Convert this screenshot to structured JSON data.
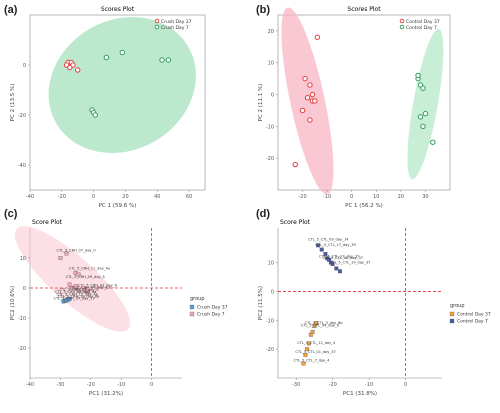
{
  "figure": {
    "panel_labels": [
      "(a)",
      "(b)",
      "(c)",
      "(d)"
    ]
  },
  "chart_data": [
    {
      "type": "scatter",
      "title": "Scores Plot",
      "xlabel": "PC 1 (59.6 %)",
      "ylabel": "PC 2 (13.5 %)",
      "xlim": [
        -40,
        70
      ],
      "ylim": [
        -50,
        20
      ],
      "xticks": [
        -40,
        -20,
        0,
        20,
        40,
        60
      ],
      "yticks": [
        -40,
        -20,
        0
      ],
      "legend": "top-right",
      "series": [
        {
          "name": "Crush Day 37",
          "color": "#e23b3b",
          "x": [
            -15,
            -16,
            -14,
            -13,
            -15,
            -17,
            -10
          ],
          "y": [
            0,
            1,
            1,
            0,
            -1,
            0,
            -2
          ]
        },
        {
          "name": "Crush Day 7",
          "color": "#2e9a5a",
          "x": [
            -1,
            0,
            1,
            8,
            18,
            43,
            47
          ],
          "y": [
            -18,
            -19,
            -20,
            3,
            5,
            2,
            2
          ]
        }
      ],
      "ellipses": [
        {
          "series": "Crush Day 7",
          "fill": "#a6e0bd",
          "cx": 18,
          "cy": -8,
          "rx": 48,
          "ry": 26,
          "angle": 30
        }
      ]
    },
    {
      "type": "scatter",
      "title": "Scores Plot",
      "xlabel": "PC 1 (56.2 %)",
      "ylabel": "PC 2 (11.1 %)",
      "xlim": [
        -30,
        40
      ],
      "ylim": [
        -30,
        25
      ],
      "xticks": [
        -20,
        -10,
        0,
        10,
        20,
        30
      ],
      "yticks": [
        -20,
        -10,
        0,
        10,
        20
      ],
      "legend": "top-right",
      "series": [
        {
          "name": "Control Day 37",
          "color": "#e23b3b",
          "x": [
            -16,
            -18,
            -17,
            -20,
            -17,
            -16,
            -15,
            -19,
            -23,
            -14
          ],
          "y": [
            -2,
            -1,
            3,
            -5,
            -8,
            0,
            -2,
            5,
            -22,
            18
          ]
        },
        {
          "name": "Control Day 7",
          "color": "#2e9a5a",
          "x": [
            27,
            28,
            29,
            30,
            29,
            33,
            27,
            28
          ],
          "y": [
            5,
            3,
            2,
            -6,
            -10,
            -15,
            6,
            -7
          ]
        }
      ],
      "ellipses": [
        {
          "series": "Control Day 37",
          "fill": "#f7b6c4",
          "cx": -18,
          "cy": -2,
          "rx": 7,
          "ry": 30,
          "angle": 12
        },
        {
          "series": "Control Day 7",
          "fill": "#b7e8c8",
          "cx": 30,
          "cy": -3,
          "rx": 5,
          "ry": 24,
          "angle": -10
        }
      ]
    },
    {
      "type": "scatter",
      "title": "Score Plot",
      "xlabel": "PC1 (31.2%)",
      "ylabel": "PC2 (10.6%)",
      "xlim": [
        -40,
        10
      ],
      "ylim": [
        -30,
        20
      ],
      "xticks": [
        -40,
        -30,
        -20,
        -10,
        0
      ],
      "yticks": [
        -20,
        -10,
        0,
        10
      ],
      "legend": "right",
      "legend_title": "group",
      "series": [
        {
          "name": "Crush Day 37",
          "color": "#5aa0d8",
          "x": [
            -29,
            -28.5,
            -28,
            -27.5,
            -27
          ],
          "y": [
            -4.5,
            -4.3,
            -4.1,
            -3.9,
            -3.7
          ]
        },
        {
          "name": "Crush Day 7",
          "color": "#f0a6b4",
          "x": [
            -30,
            -28,
            -25,
            -24,
            -27,
            -25,
            -26,
            -24,
            -22,
            -21
          ],
          "y": [
            10,
            11.5,
            5,
            4.5,
            1.2,
            0.6,
            0,
            -0.8,
            -0.8,
            -1.2
          ]
        }
      ],
      "point_labels": [
        "CTL_5_CRH_37_day_17",
        "CTL_5_CRH_12_day_4b",
        "CTL_5_CRH_03_day_0",
        "CTL_5_CRH_07_day_0",
        "CTL_5_CRH_11_day_4a",
        "CTL_5_CRH_09_day_5",
        "CTL_5_CRH_04_day_13",
        "CTL_5_CRH_02_day_6",
        "CTL_5_CRH_08_day_6a",
        "CTL_5_CRH_10_day_6a"
      ],
      "reference_lines": {
        "x": 0,
        "y": 0
      }
    },
    {
      "type": "scatter",
      "title": "Score Plot",
      "xlabel": "PC1 (31.8%)",
      "ylabel": "PC2 (11.5%)",
      "xlim": [
        -35,
        10
      ],
      "ylim": [
        -30,
        22
      ],
      "xticks": [
        -30,
        -20,
        -10,
        0
      ],
      "yticks": [
        -20,
        -10,
        0,
        10
      ],
      "legend": "right",
      "legend_title": "group",
      "series": [
        {
          "name": "Control Day 37",
          "color": "#f0a040",
          "x": [
            -28,
            -27.5,
            -27,
            -26.5,
            -26,
            -25.5,
            -25,
            -24.5
          ],
          "y": [
            -25,
            -22,
            -20,
            -18,
            -15,
            -14,
            -12,
            -11
          ]
        },
        {
          "name": "Control Day 7",
          "color": "#4a5aa0",
          "x": [
            -24,
            -23,
            -22,
            -21.5,
            -21,
            -20.5,
            -20,
            -19,
            -18
          ],
          "y": [
            16,
            14.5,
            13,
            11.5,
            11,
            10,
            9.5,
            8,
            7
          ]
        }
      ],
      "point_labels": [
        "CTL_5_CTL_7_day_4",
        "CTL_5_CTL_12_day_4",
        "CTL_5_CTL_04_day_9",
        "CTL_5_CTL_3_day_6b",
        "CTL_5_CTL_09_day_14",
        "CTL_5_CTL_17_day_39",
        "CTL_5_CTL_27_day_37",
        "CTL_5_CTL_06_day_37",
        "CTL_5_CTL_19_day_37",
        "CTL_5_CTL_01_day_37"
      ],
      "reference_lines": {
        "x": 0,
        "y": 0
      }
    }
  ]
}
